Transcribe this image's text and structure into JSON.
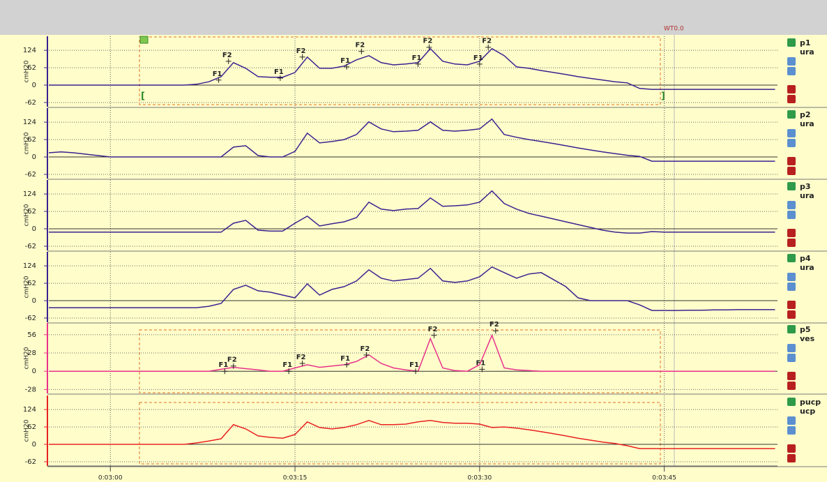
{
  "event_label": "WT0.0",
  "chart_data": [
    {
      "type": "line",
      "site": "ura",
      "ylabel": "cmH20",
      "grid": true,
      "x": [
        175,
        176,
        177,
        178,
        179,
        180,
        181,
        182,
        183,
        184,
        185,
        186,
        187,
        188,
        189,
        190,
        191,
        192,
        193,
        194,
        195,
        196,
        197,
        198,
        199,
        200,
        201,
        202,
        203,
        204,
        205,
        206,
        207,
        208,
        209,
        210,
        211,
        212,
        213,
        214,
        215,
        216,
        217,
        218,
        219,
        220,
        221,
        222,
        223,
        224,
        225,
        226,
        227,
        228,
        229,
        230,
        231,
        232,
        233,
        234
      ],
      "xlim": [
        175,
        234.2
      ],
      "ylim": [
        -77,
        174
      ],
      "yticks": [
        -62,
        0,
        62,
        124
      ],
      "series": [
        {
          "name": "p1",
          "color": "#3b2190",
          "values": [
            0,
            0,
            0,
            0,
            0,
            0,
            0,
            0,
            0,
            0,
            0,
            0,
            3,
            12,
            30,
            80,
            60,
            30,
            28,
            28,
            45,
            100,
            60,
            60,
            68,
            90,
            105,
            80,
            72,
            75,
            80,
            130,
            85,
            75,
            72,
            85,
            130,
            105,
            65,
            60,
            52,
            45,
            38,
            30,
            24,
            18,
            12,
            8,
            -12,
            -15,
            -15,
            -15,
            -15,
            -15,
            -15,
            -15,
            -15,
            -15,
            -15,
            -15
          ]
        }
      ],
      "markers": [
        {
          "label": "F1",
          "x": 188.8,
          "value": 18
        },
        {
          "label": "F2",
          "x": 189.6,
          "value": 85
        },
        {
          "label": "F1",
          "x": 193.8,
          "value": 25
        },
        {
          "label": "F2",
          "x": 195.6,
          "value": 100
        },
        {
          "label": "F1",
          "x": 199.2,
          "value": 65
        },
        {
          "label": "F2",
          "x": 200.4,
          "value": 120
        },
        {
          "label": "F1",
          "x": 205,
          "value": 75
        },
        {
          "label": "F2",
          "x": 205.9,
          "value": 135
        },
        {
          "label": "F1",
          "x": 210,
          "value": 75
        },
        {
          "label": "F2",
          "x": 210.7,
          "value": 135
        }
      ]
    },
    {
      "type": "line",
      "site": "ura",
      "ylabel": "cmH20",
      "grid": true,
      "x": [
        175,
        176,
        177,
        178,
        179,
        180,
        181,
        182,
        183,
        184,
        185,
        186,
        187,
        188,
        189,
        190,
        191,
        192,
        193,
        194,
        195,
        196,
        197,
        198,
        199,
        200,
        201,
        202,
        203,
        204,
        205,
        206,
        207,
        208,
        209,
        210,
        211,
        212,
        213,
        214,
        215,
        216,
        217,
        218,
        219,
        220,
        221,
        222,
        223,
        224,
        225,
        226,
        227,
        228,
        229,
        230,
        231,
        232,
        233,
        234
      ],
      "xlim": [
        175,
        234.2
      ],
      "ylim": [
        -77,
        174
      ],
      "yticks": [
        -62,
        0,
        62,
        124
      ],
      "series": [
        {
          "name": "p2",
          "color": "#3b2190",
          "values": [
            15,
            18,
            15,
            10,
            5,
            0,
            0,
            0,
            0,
            0,
            0,
            0,
            0,
            0,
            0,
            35,
            40,
            5,
            0,
            0,
            20,
            85,
            50,
            55,
            62,
            80,
            125,
            100,
            90,
            92,
            95,
            125,
            95,
            92,
            95,
            100,
            135,
            80,
            70,
            62,
            55,
            48,
            40,
            32,
            25,
            18,
            12,
            6,
            2,
            -15,
            -15,
            -15,
            -15,
            -15,
            -15,
            -15,
            -15,
            -15,
            -15,
            -15
          ]
        }
      ]
    },
    {
      "type": "line",
      "site": "ura",
      "ylabel": "cmH20",
      "grid": true,
      "x": [
        175,
        176,
        177,
        178,
        179,
        180,
        181,
        182,
        183,
        184,
        185,
        186,
        187,
        188,
        189,
        190,
        191,
        192,
        193,
        194,
        195,
        196,
        197,
        198,
        199,
        200,
        201,
        202,
        203,
        204,
        205,
        206,
        207,
        208,
        209,
        210,
        211,
        212,
        213,
        214,
        215,
        216,
        217,
        218,
        219,
        220,
        221,
        222,
        223,
        224,
        225,
        226,
        227,
        228,
        229,
        230,
        231,
        232,
        233,
        234
      ],
      "xlim": [
        175,
        234.2
      ],
      "ylim": [
        -77,
        174
      ],
      "yticks": [
        -62,
        0,
        62,
        124
      ],
      "series": [
        {
          "name": "p3",
          "color": "#3b2190",
          "values": [
            -12,
            -12,
            -12,
            -12,
            -12,
            -12,
            -12,
            -12,
            -12,
            -12,
            -12,
            -12,
            -12,
            -12,
            -12,
            20,
            30,
            -5,
            -8,
            -8,
            20,
            45,
            10,
            18,
            25,
            40,
            95,
            70,
            65,
            70,
            72,
            110,
            80,
            82,
            85,
            95,
            135,
            90,
            70,
            55,
            45,
            35,
            25,
            15,
            5,
            -5,
            -12,
            -15,
            -15,
            -10,
            -12,
            -12,
            -12,
            -12,
            -12,
            -12,
            -12,
            -12,
            -12,
            -12
          ]
        }
      ]
    },
    {
      "type": "line",
      "site": "ura",
      "ylabel": "cmH20",
      "grid": true,
      "x": [
        175,
        176,
        177,
        178,
        179,
        180,
        181,
        182,
        183,
        184,
        185,
        186,
        187,
        188,
        189,
        190,
        191,
        192,
        193,
        194,
        195,
        196,
        197,
        198,
        199,
        200,
        201,
        202,
        203,
        204,
        205,
        206,
        207,
        208,
        209,
        210,
        211,
        212,
        213,
        214,
        215,
        216,
        217,
        218,
        219,
        220,
        221,
        222,
        223,
        224,
        225,
        226,
        227,
        228,
        229,
        230,
        231,
        232,
        233,
        234
      ],
      "xlim": [
        175,
        234.2
      ],
      "ylim": [
        -77,
        174
      ],
      "yticks": [
        -62,
        0,
        62,
        124
      ],
      "series": [
        {
          "name": "p4",
          "color": "#3b2190",
          "values": [
            -25,
            -25,
            -25,
            -25,
            -25,
            -25,
            -25,
            -25,
            -25,
            -25,
            -25,
            -25,
            -25,
            -20,
            -10,
            40,
            55,
            35,
            30,
            20,
            10,
            60,
            20,
            40,
            50,
            70,
            110,
            80,
            70,
            75,
            80,
            115,
            70,
            65,
            70,
            85,
            120,
            100,
            80,
            95,
            100,
            75,
            50,
            10,
            0,
            0,
            0,
            0,
            -15,
            -35,
            -35,
            -35,
            -34,
            -34,
            -33,
            -33,
            -32,
            -32,
            -32,
            -32
          ]
        }
      ]
    },
    {
      "type": "line",
      "site": "ves",
      "ylabel": "cmH20",
      "grid": true,
      "x": [
        175,
        176,
        177,
        178,
        179,
        180,
        181,
        182,
        183,
        184,
        185,
        186,
        187,
        188,
        189,
        190,
        191,
        192,
        193,
        194,
        195,
        196,
        197,
        198,
        199,
        200,
        201,
        202,
        203,
        204,
        205,
        206,
        207,
        208,
        209,
        210,
        211,
        212,
        213,
        214,
        215,
        216,
        217,
        218,
        219,
        220,
        221,
        222,
        223,
        224,
        225,
        226,
        227,
        228,
        229,
        230,
        231,
        232,
        233,
        234
      ],
      "xlim": [
        175,
        234.2
      ],
      "ylim": [
        -34,
        74
      ],
      "yticks": [
        -28,
        0,
        28,
        56
      ],
      "series": [
        {
          "name": "p5",
          "color": "#e8318a",
          "values": [
            0,
            0,
            0,
            0,
            0,
            0,
            0,
            0,
            0,
            0,
            0,
            0,
            0,
            0,
            3,
            6,
            4,
            2,
            0,
            0,
            5,
            10,
            6,
            8,
            10,
            15,
            25,
            12,
            5,
            2,
            0,
            50,
            5,
            1,
            0,
            10,
            55,
            5,
            2,
            1,
            0,
            0,
            0,
            0,
            0,
            0,
            0,
            0,
            0,
            0,
            0,
            0,
            0,
            0,
            0,
            0,
            0,
            0,
            0,
            0
          ]
        }
      ],
      "markers": [
        {
          "label": "F1",
          "x": 189.3,
          "value": 0
        },
        {
          "label": "F2",
          "x": 190,
          "value": 8
        },
        {
          "label": "F1",
          "x": 194.5,
          "value": 0
        },
        {
          "label": "F2",
          "x": 195.6,
          "value": 12
        },
        {
          "label": "F1",
          "x": 199.2,
          "value": 10
        },
        {
          "label": "F2",
          "x": 200.8,
          "value": 25
        },
        {
          "label": "F1",
          "x": 204.8,
          "value": 0
        },
        {
          "label": "F2",
          "x": 206.3,
          "value": 55
        },
        {
          "label": "F1",
          "x": 210.2,
          "value": 3
        },
        {
          "label": "F2",
          "x": 211.3,
          "value": 62
        }
      ]
    },
    {
      "type": "line",
      "site": "ucp",
      "ylabel": "cmH20",
      "grid": true,
      "x": [
        175,
        176,
        177,
        178,
        179,
        180,
        181,
        182,
        183,
        184,
        185,
        186,
        187,
        188,
        189,
        190,
        191,
        192,
        193,
        194,
        195,
        196,
        197,
        198,
        199,
        200,
        201,
        202,
        203,
        204,
        205,
        206,
        207,
        208,
        209,
        210,
        211,
        212,
        213,
        214,
        215,
        216,
        217,
        218,
        219,
        220,
        221,
        222,
        223,
        224,
        225,
        226,
        227,
        228,
        229,
        230,
        231,
        232,
        233,
        234
      ],
      "xlim": [
        175,
        234.2
      ],
      "ylim": [
        -77,
        174
      ],
      "yticks": [
        -62,
        0,
        62,
        124
      ],
      "xticks": [
        {
          "value": 180,
          "label": "0:03:00"
        },
        {
          "value": 195,
          "label": "0:03:15"
        },
        {
          "value": 210,
          "label": "0:03:30"
        },
        {
          "value": 225,
          "label": "0:03:45"
        }
      ],
      "series": [
        {
          "name": "pucp",
          "color": "#e82020",
          "values": [
            0,
            0,
            0,
            0,
            0,
            0,
            0,
            0,
            0,
            0,
            0,
            0,
            5,
            12,
            20,
            70,
            55,
            30,
            25,
            22,
            35,
            80,
            60,
            55,
            60,
            70,
            85,
            70,
            70,
            72,
            80,
            85,
            78,
            75,
            75,
            72,
            60,
            62,
            58,
            52,
            45,
            38,
            30,
            22,
            15,
            8,
            3,
            -5,
            -15,
            -15,
            -15,
            -15,
            -15,
            -15,
            -15,
            -15,
            -15,
            -15,
            -15,
            -15
          ]
        }
      ]
    }
  ]
}
